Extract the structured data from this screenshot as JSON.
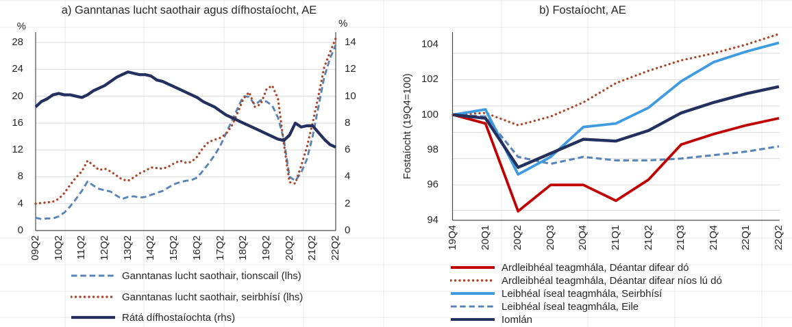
{
  "chart_data": [
    {
      "type": "line",
      "title": "a) Ganntanas lucht saothair agus dífhostaíocht, AE",
      "left_axis": {
        "unit": "%",
        "min": 0,
        "max": 28,
        "ticks": [
          0,
          4,
          8,
          12,
          16,
          20,
          24,
          28
        ]
      },
      "right_axis": {
        "unit": "%",
        "min": 0,
        "max": 14,
        "ticks": [
          0,
          2,
          4,
          6,
          8,
          10,
          12,
          14
        ]
      },
      "grid": "horizontal",
      "legend_position": "bottom-left",
      "x": [
        "09Q2",
        "09Q3",
        "09Q4",
        "10Q1",
        "10Q2",
        "10Q3",
        "10Q4",
        "11Q1",
        "11Q2",
        "11Q3",
        "11Q4",
        "12Q1",
        "12Q2",
        "12Q3",
        "12Q4",
        "13Q1",
        "13Q2",
        "13Q3",
        "13Q4",
        "14Q1",
        "14Q2",
        "14Q3",
        "14Q4",
        "15Q1",
        "15Q2",
        "15Q3",
        "15Q4",
        "16Q1",
        "16Q2",
        "16Q3",
        "16Q4",
        "17Q1",
        "17Q2",
        "17Q3",
        "17Q4",
        "18Q1",
        "18Q2",
        "18Q3",
        "18Q4",
        "19Q1",
        "19Q2",
        "19Q3",
        "19Q4",
        "20Q1",
        "20Q2",
        "20Q3",
        "20Q4",
        "21Q1",
        "21Q2",
        "21Q3",
        "21Q4",
        "22Q1",
        "22Q2"
      ],
      "x_tick_labels": [
        "09Q2",
        "10Q2",
        "11Q2",
        "12Q2",
        "13Q2",
        "14Q2",
        "15Q2",
        "16Q2",
        "17Q2",
        "18Q2",
        "19Q2",
        "20Q2",
        "21Q2",
        "22Q2"
      ],
      "series": [
        {
          "name": "Ganntanas lucht saothair, tionscail (lhs)",
          "axis": "left",
          "style": "dashed",
          "color": "#5785B5",
          "values": [
            1.9,
            1.7,
            1.8,
            1.8,
            2.1,
            2.7,
            3.6,
            4.7,
            5.9,
            7.3,
            6.7,
            6.2,
            6.0,
            5.8,
            5.2,
            4.7,
            5.0,
            5.1,
            4.9,
            5.0,
            5.3,
            5.6,
            5.9,
            6.4,
            6.9,
            7.2,
            7.4,
            7.5,
            7.9,
            8.9,
            10.0,
            11.2,
            12.6,
            14.5,
            16.3,
            18.2,
            20.0,
            19.9,
            18.7,
            19.4,
            19.2,
            18.6,
            16.8,
            13.6,
            8.0,
            7.4,
            8.6,
            10.6,
            14.0,
            18.4,
            22.8,
            25.6,
            27.6
          ]
        },
        {
          "name": "Ganntanas lucht saothair, seirbhísí (lhs)",
          "axis": "left",
          "style": "dotted",
          "color": "#AC4527",
          "values": [
            4.0,
            4.1,
            4.2,
            4.3,
            4.7,
            5.6,
            6.8,
            7.9,
            8.8,
            10.4,
            9.7,
            9.0,
            9.2,
            8.8,
            8.2,
            7.6,
            7.4,
            7.9,
            8.5,
            8.9,
            9.4,
            9.3,
            9.2,
            9.5,
            10.0,
            10.4,
            10.1,
            10.2,
            11.0,
            12.3,
            13.2,
            13.5,
            13.8,
            14.4,
            15.6,
            17.5,
            19.6,
            20.6,
            18.4,
            18.8,
            21.0,
            21.6,
            19.6,
            13.0,
            7.2,
            7.0,
            9.6,
            12.4,
            16.0,
            20.0,
            24.3,
            26.5,
            28.6
          ]
        },
        {
          "name": "Rátá dífhostaíochta (rhs)",
          "axis": "right",
          "style": "solid",
          "color": "#24305E",
          "values": [
            9.2,
            9.6,
            9.8,
            10.1,
            10.2,
            10.1,
            10.1,
            10.0,
            9.9,
            10.1,
            10.4,
            10.6,
            10.8,
            11.1,
            11.4,
            11.6,
            11.8,
            11.7,
            11.6,
            11.6,
            11.5,
            11.2,
            11.1,
            10.9,
            10.7,
            10.5,
            10.3,
            10.1,
            9.9,
            9.6,
            9.4,
            9.2,
            8.9,
            8.6,
            8.4,
            8.2,
            8.0,
            7.8,
            7.6,
            7.4,
            7.2,
            7.0,
            6.8,
            6.7,
            7.1,
            8.0,
            7.7,
            7.8,
            7.8,
            7.3,
            6.8,
            6.4,
            6.2
          ]
        }
      ]
    },
    {
      "type": "line",
      "title": "b) Fostaíocht, AE",
      "ylabel": "Fostaíocht (19Q4=100)",
      "y_axis": {
        "min": 94,
        "max": 105,
        "ticks": [
          94,
          96,
          98,
          100,
          102,
          104
        ]
      },
      "gridline_values": [
        103.5,
        102,
        100.5,
        99,
        97.5,
        96,
        94.55
      ],
      "legend_position": "bottom-left",
      "x": [
        "19Q4",
        "20Q1",
        "20Q2",
        "20Q3",
        "20Q4",
        "21Q1",
        "21Q2",
        "21Q3",
        "21Q4",
        "22Q1",
        "22Q2"
      ],
      "x_tick_labels": [
        "19Q4",
        "20Q1",
        "20Q2",
        "20Q3",
        "20Q4",
        "21Q1",
        "21Q2",
        "21Q3",
        "21Q4",
        "22Q1",
        "22Q2"
      ],
      "series": [
        {
          "name": "Ardleibhéal teagmhála, Déantar difear dó",
          "style": "solid",
          "color": "#C00000",
          "values": [
            100,
            99.5,
            94.5,
            96.0,
            96.0,
            95.1,
            96.3,
            98.3,
            98.9,
            99.4,
            99.8
          ]
        },
        {
          "name": "Ardleibhéal teagmhála, Déantar difear níos lú dó",
          "style": "dotted",
          "color": "#AC4527",
          "values": [
            100,
            100.1,
            99.4,
            99.9,
            100.7,
            101.8,
            102.5,
            103.1,
            103.5,
            104.0,
            104.6
          ]
        },
        {
          "name": "Leibhéal íseal teagmhála, Seirbhísí",
          "style": "solid",
          "color": "#3F9BE0",
          "values": [
            100,
            100.3,
            96.6,
            97.6,
            99.3,
            99.5,
            100.4,
            101.9,
            103.0,
            103.6,
            104.1
          ]
        },
        {
          "name": "Leibhéal íseal teagmhála, Eile",
          "style": "dashed",
          "color": "#5785B5",
          "values": [
            100,
            99.9,
            97.6,
            97.2,
            97.6,
            97.4,
            97.4,
            97.5,
            97.7,
            97.9,
            98.2
          ]
        },
        {
          "name": "Iomlán",
          "style": "solid",
          "color": "#24305E",
          "values": [
            100,
            99.8,
            97.0,
            97.8,
            98.6,
            98.5,
            99.1,
            100.1,
            100.7,
            101.2,
            101.6
          ]
        }
      ]
    }
  ]
}
